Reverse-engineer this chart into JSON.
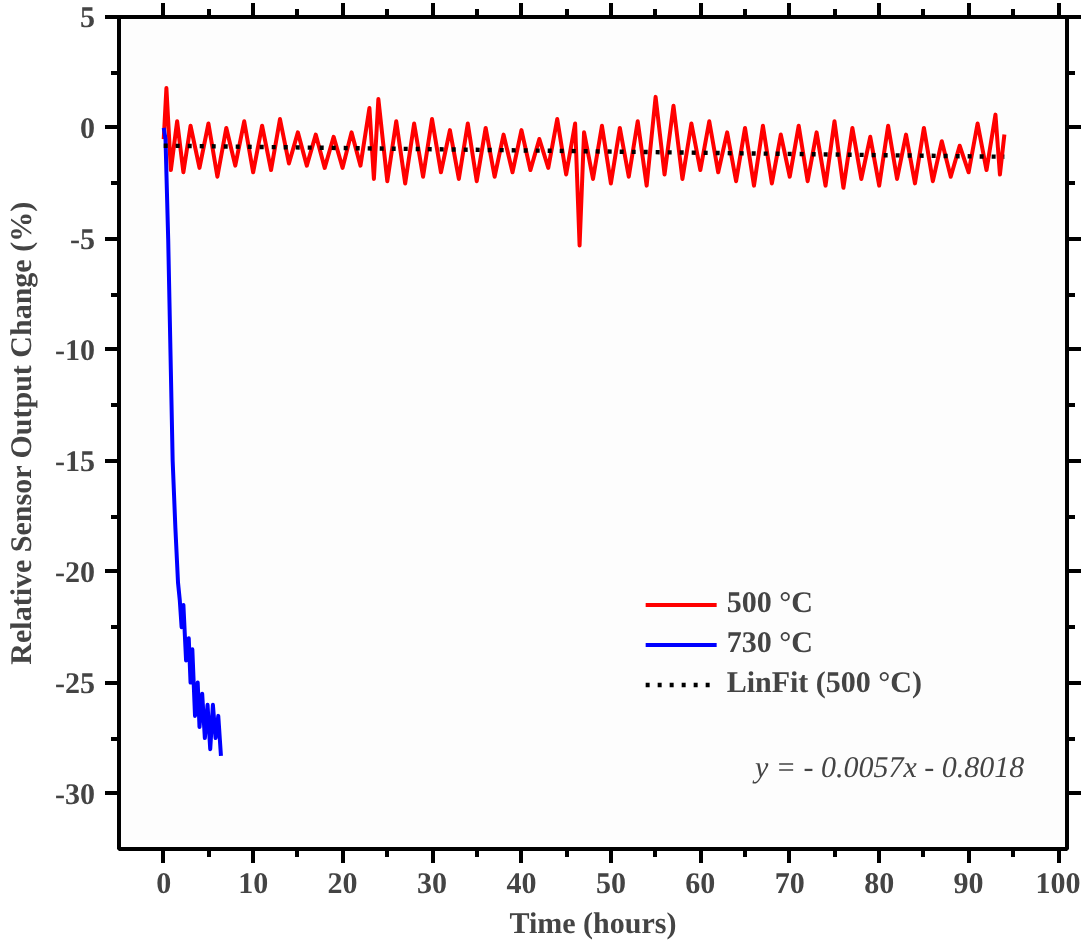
{
  "chart_data": {
    "type": "line",
    "xlabel": "Time (hours)",
    "ylabel": "Relative Sensor Output Change (%)",
    "xlim": [
      -5,
      101
    ],
    "ylim": [
      -32.5,
      5
    ],
    "xticks": [
      0,
      10,
      20,
      30,
      40,
      50,
      60,
      70,
      80,
      90,
      100,
      {
        "value": 5,
        "label": null
      },
      {
        "value": 15,
        "label": null
      },
      {
        "value": 25,
        "label": null
      },
      {
        "value": 35,
        "label": null
      },
      {
        "value": 45,
        "label": null
      },
      {
        "value": 55,
        "label": null
      },
      {
        "value": 65,
        "label": null
      },
      {
        "value": 75,
        "label": null
      },
      {
        "value": 85,
        "label": null
      },
      {
        "value": 95,
        "label": null
      }
    ],
    "yticks": [
      5,
      0,
      -5,
      -10,
      -15,
      -20,
      -25,
      -30,
      {
        "value": 2.5,
        "label": null
      },
      {
        "value": -2.5,
        "label": null
      },
      {
        "value": -7.5,
        "label": null
      },
      {
        "value": -12.5,
        "label": null
      },
      {
        "value": -17.5,
        "label": null
      },
      {
        "value": -22.5,
        "label": null
      },
      {
        "value": -27.5,
        "label": null
      }
    ],
    "grid": false,
    "legend": "bottom right",
    "line_style": "solid",
    "annotations": [
      "y = - 0.0057x - 0.8018"
    ],
    "series": [
      {
        "name": "500 °C",
        "color": "#ff0000",
        "x": [
          0,
          0.3,
          0.8,
          1.5,
          2.2,
          3,
          4,
          5,
          6,
          7,
          8,
          9,
          10,
          11,
          12,
          13,
          14,
          15,
          16,
          17,
          18,
          19,
          20,
          21,
          22,
          23,
          23.5,
          24,
          25,
          26,
          27,
          28,
          29,
          30,
          31,
          32,
          33,
          34,
          35,
          36,
          37,
          38,
          39,
          40,
          41,
          42,
          43,
          44,
          45,
          46,
          46.5,
          47,
          48,
          49,
          50,
          51,
          52,
          53,
          54,
          55,
          56,
          57,
          58,
          59,
          60,
          61,
          62,
          63,
          64,
          65,
          66,
          67,
          68,
          69,
          70,
          71,
          72,
          73,
          74,
          75,
          76,
          77,
          78,
          79,
          80,
          81,
          82,
          83,
          84,
          85,
          86,
          87,
          88,
          89,
          90,
          91,
          92,
          93,
          93.5,
          94
        ],
        "values": [
          -0.5,
          1.8,
          -1.9,
          0.3,
          -2.0,
          0.1,
          -1.8,
          0.2,
          -2.2,
          0.0,
          -1.7,
          0.3,
          -2.0,
          0.1,
          -1.9,
          0.4,
          -1.6,
          -0.2,
          -1.7,
          -0.3,
          -1.8,
          -0.4,
          -1.8,
          -0.2,
          -1.7,
          0.9,
          -2.3,
          1.3,
          -2.4,
          0.3,
          -2.5,
          0.2,
          -2.2,
          0.4,
          -2.0,
          -0.1,
          -2.3,
          0.2,
          -2.4,
          0.0,
          -2.2,
          -0.3,
          -2.0,
          -0.1,
          -1.9,
          -0.5,
          -1.8,
          0.4,
          -2.1,
          0.2,
          -5.3,
          -0.2,
          -2.3,
          0.1,
          -2.5,
          0.0,
          -2.2,
          0.3,
          -2.6,
          1.4,
          -2.1,
          1.0,
          -2.3,
          0.2,
          -1.9,
          0.3,
          -2.0,
          -0.2,
          -2.4,
          0.0,
          -2.6,
          0.1,
          -2.5,
          -0.3,
          -2.2,
          0.1,
          -2.4,
          -0.2,
          -2.6,
          0.3,
          -2.7,
          0.0,
          -2.3,
          -0.4,
          -2.6,
          0.1,
          -2.3,
          -0.3,
          -2.5,
          0.0,
          -2.4,
          -0.6,
          -2.2,
          -0.8,
          -2.0,
          0.2,
          -1.9,
          0.6,
          -2.1,
          -0.3
        ]
      },
      {
        "name": "730 °C",
        "color": "#0000ff",
        "x": [
          0,
          0.2,
          0.5,
          0.8,
          1.0,
          1.3,
          1.6,
          1.8,
          2.0,
          2.2,
          2.5,
          2.8,
          3.0,
          3.2,
          3.5,
          3.8,
          4.0,
          4.3,
          4.6,
          4.9,
          5.2,
          5.5,
          5.8,
          6.1,
          6.4
        ],
        "values": [
          0,
          -0.5,
          -5,
          -11,
          -15,
          -18,
          -20.5,
          -21.3,
          -22.5,
          -21.5,
          -24,
          -23,
          -25,
          -23.5,
          -26.5,
          -25,
          -27,
          -25.5,
          -27.5,
          -26,
          -28,
          -26,
          -27.5,
          -26.5,
          -28.3
        ]
      },
      {
        "name": "LinFit (500 °C)",
        "color": "#000000",
        "line_style": "dotted",
        "x": [
          0,
          94
        ],
        "values": [
          -0.8,
          -1.3
        ]
      }
    ]
  }
}
